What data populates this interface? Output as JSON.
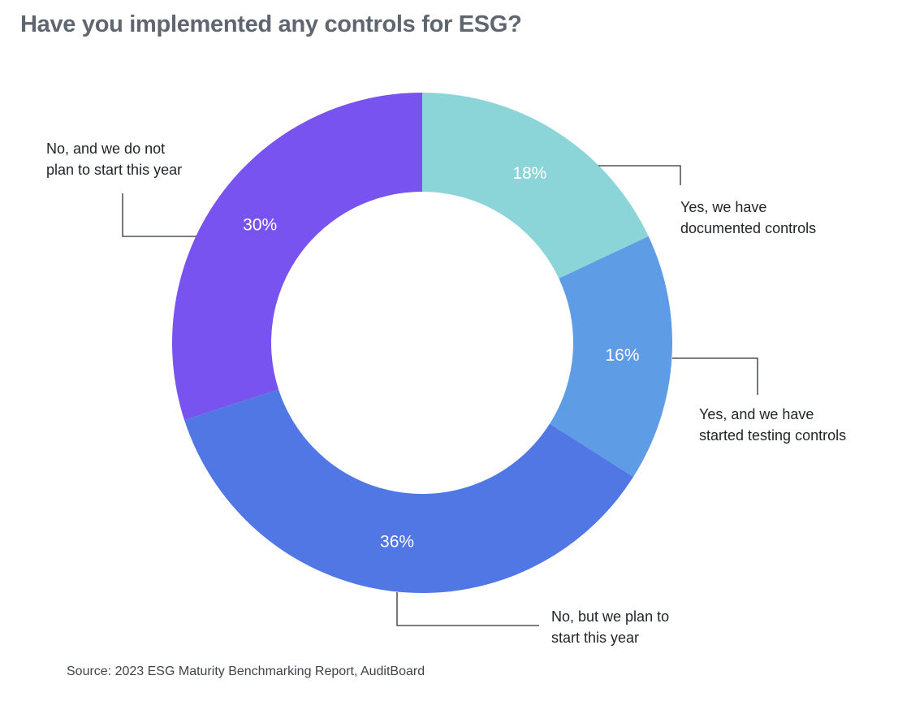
{
  "title": "Have you implemented any controls for ESG?",
  "source": "Source: 2023 ESG Maturity Benchmarking Report, AuditBoard",
  "colors": {
    "documented": "#8bd5d9",
    "testing": "#5f9ce6",
    "plan_this_year": "#5077e4",
    "no_plan": "#7953ef"
  },
  "chart_data": {
    "type": "pie",
    "donut": true,
    "title": "Have you implemented any controls for ESG?",
    "slices": [
      {
        "label_lines": [
          "Yes, we have",
          "documented controls"
        ],
        "value": 18,
        "value_label": "18%",
        "color": "#8bd5d9"
      },
      {
        "label_lines": [
          "Yes, and we have",
          "started testing controls"
        ],
        "value": 16,
        "value_label": "16%",
        "color": "#5f9ce6"
      },
      {
        "label_lines": [
          "No, but we plan to",
          "start this year"
        ],
        "value": 36,
        "value_label": "36%",
        "color": "#5077e4"
      },
      {
        "label_lines": [
          "No, and we do not",
          "plan to start this year"
        ],
        "value": 30,
        "value_label": "30%",
        "color": "#7953ef"
      }
    ]
  }
}
